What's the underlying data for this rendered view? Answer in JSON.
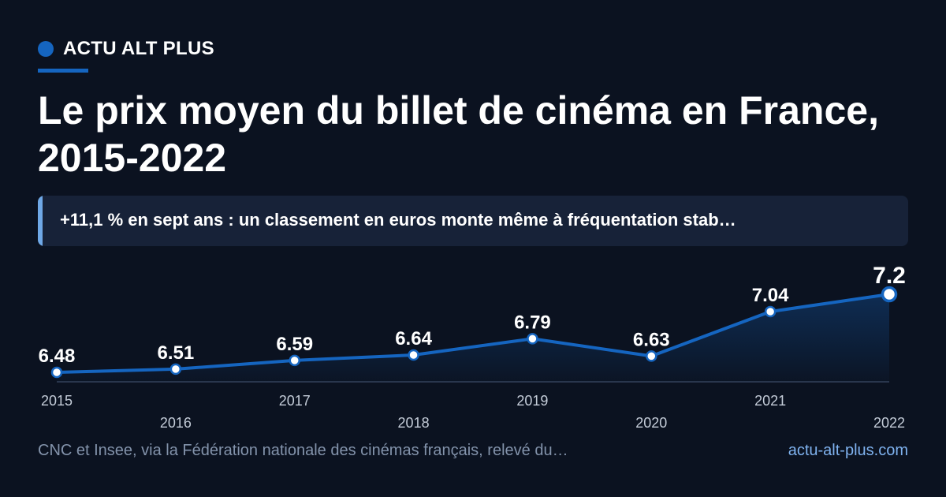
{
  "brand": {
    "name": "ACTU ALT PLUS"
  },
  "title": "Le prix moyen du billet de cinéma en France, 2015-2022",
  "subtitle": "+11,1 % en sept ans : un classement en euros monte même à fréquentation stab…",
  "source": "CNC et Insee, via la Fédération nationale des cinémas français, relevé du…",
  "site": "actu-alt-plus.com",
  "colors": {
    "background": "#0b1220",
    "accent": "#1565c0",
    "line": "#1565c0",
    "muted_text": "#8393ab",
    "link": "#7fb2ef"
  },
  "chart_data": {
    "type": "line",
    "x": [
      "2015",
      "2016",
      "2017",
      "2018",
      "2019",
      "2020",
      "2021",
      "2022"
    ],
    "values": [
      6.48,
      6.51,
      6.59,
      6.64,
      6.79,
      6.63,
      7.04,
      7.2
    ],
    "data_labels": [
      "6.48",
      "6.51",
      "6.59",
      "6.64",
      "6.79",
      "6.63",
      "7.04",
      "7.2"
    ],
    "title": "",
    "xlabel": "",
    "ylabel": "",
    "grid": false,
    "area_fill": true,
    "highlight_last": true
  }
}
